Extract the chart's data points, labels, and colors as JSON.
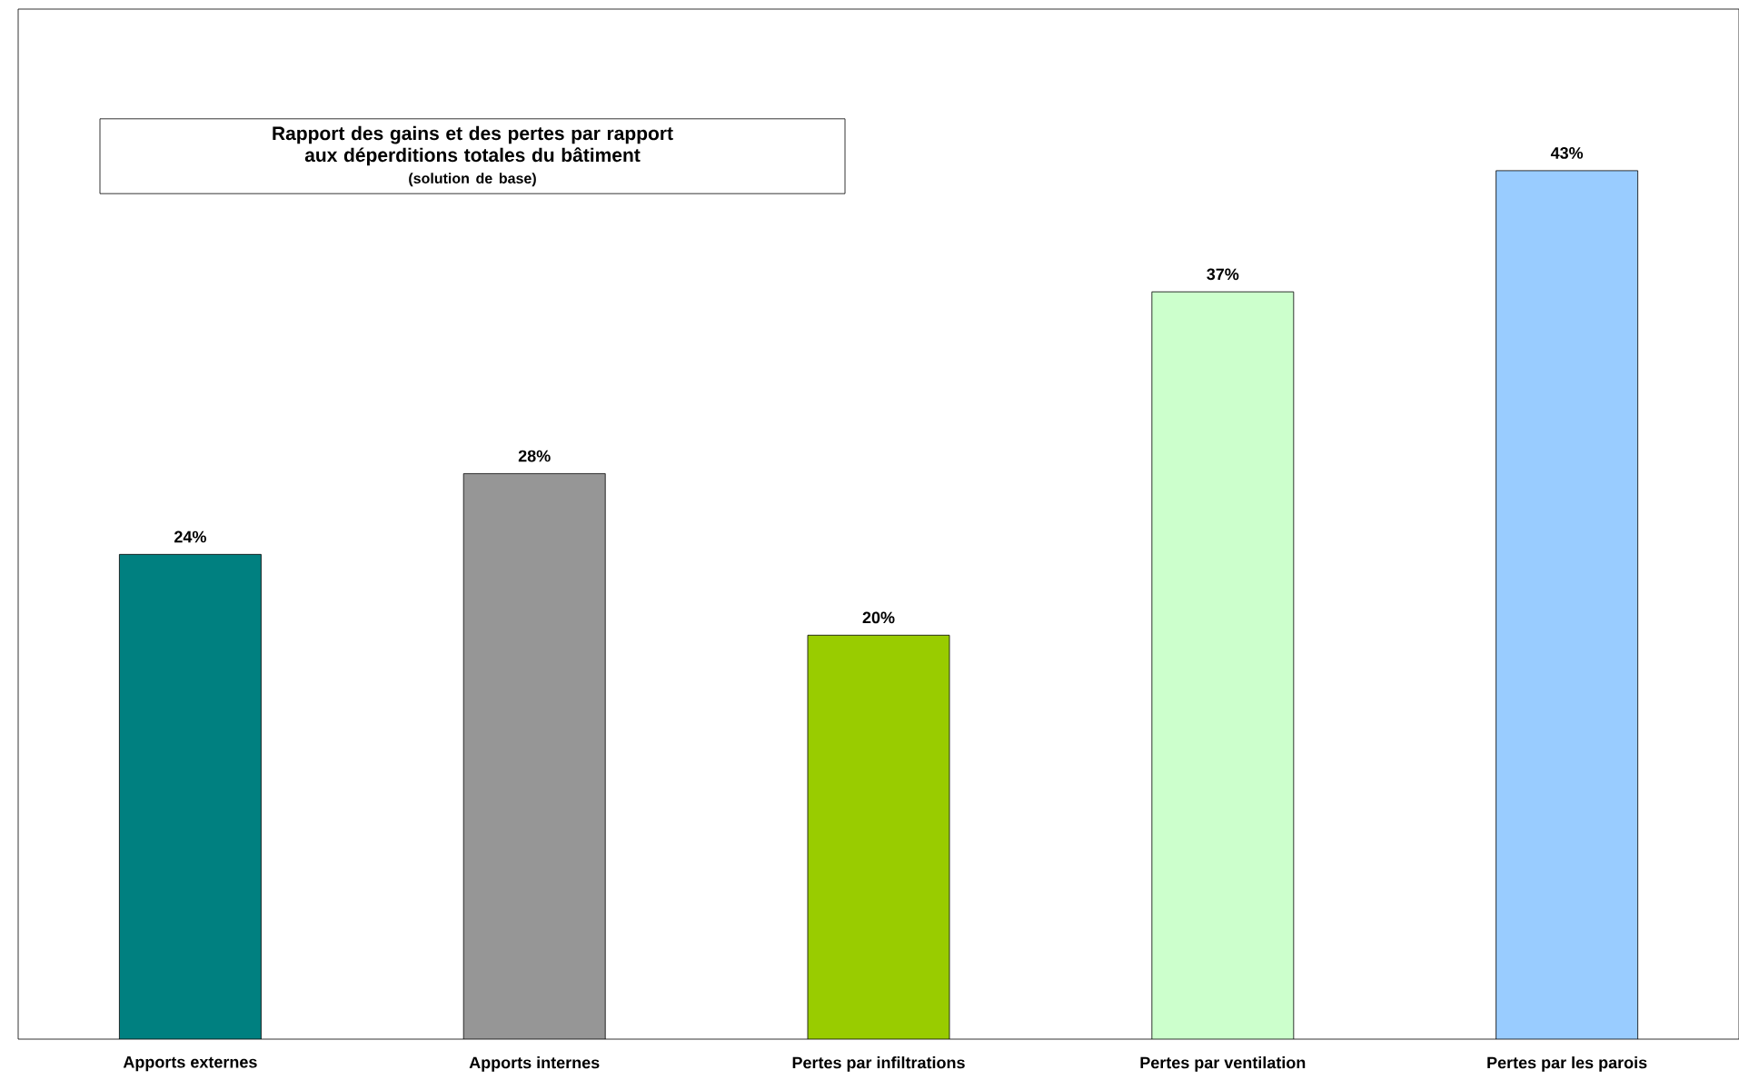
{
  "chart_data": {
    "type": "bar",
    "title": "Rapport des gains et des pertes par rapport aux déperditions totales du bâtiment",
    "subtitle": "(solution de base)",
    "categories": [
      "Apports externes",
      "Apports internes",
      "Pertes par infiltrations",
      "Pertes par ventilation",
      "Pertes par les parois"
    ],
    "values": [
      24,
      28,
      20,
      37,
      43
    ],
    "value_labels": [
      "24%",
      "28%",
      "20%",
      "37%",
      "43%"
    ],
    "colors": [
      "#008080",
      "#969696",
      "#99cc00",
      "#ccffcc",
      "#99ccff"
    ],
    "ylim": [
      0,
      51
    ],
    "tick_labels": "x"
  }
}
